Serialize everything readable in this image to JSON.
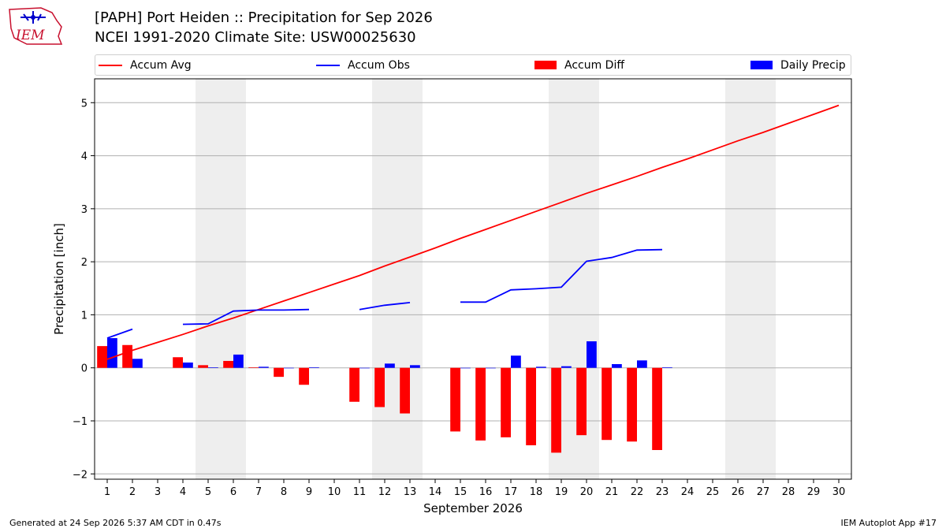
{
  "header": {
    "title_line1": "[PAPH] Port Heiden :: Precipitation for Sep 2026",
    "title_line2": "NCEI 1991-2020 Climate Site: USW00025630",
    "logo_text": "IEM"
  },
  "legend": {
    "accum_avg": "Accum Avg",
    "accum_obs": "Accum Obs",
    "accum_diff": "Accum Diff",
    "daily_precip": "Daily Precip"
  },
  "footer": {
    "left": "Generated at 24 Sep 2026 5:37 AM CDT in 0.47s",
    "right": "IEM Autoplot App #17"
  },
  "colors": {
    "accum_avg": "#ff0000",
    "accum_obs": "#0000ff",
    "accum_diff": "#ff0000",
    "daily_precip": "#0000ff",
    "weekend_shade": "#eeeeee",
    "grid": "#b0b0b0"
  },
  "chart_data": {
    "type": "bar",
    "xlabel": "September 2026",
    "ylabel": "Precipitation [inch]",
    "xlim": [
      0.5,
      30.5
    ],
    "ylim": [
      -2.1,
      5.45
    ],
    "yticks": [
      -2,
      -1,
      0,
      1,
      2,
      3,
      4,
      5
    ],
    "ytick_labels": [
      "−2",
      "−1",
      "0",
      "1",
      "2",
      "3",
      "4",
      "5"
    ],
    "days": [
      1,
      2,
      3,
      4,
      5,
      6,
      7,
      8,
      9,
      10,
      11,
      12,
      13,
      14,
      15,
      16,
      17,
      18,
      19,
      20,
      21,
      22,
      23,
      24,
      25,
      26,
      27,
      28,
      29,
      30
    ],
    "weekend_spans": [
      [
        4.5,
        6.5
      ],
      [
        11.5,
        13.5
      ],
      [
        18.5,
        20.5
      ],
      [
        25.5,
        27.5
      ]
    ],
    "grid": true,
    "legend_position": "top",
    "series": [
      {
        "name": "Accum Avg",
        "kind": "line",
        "values": [
          0.16,
          0.33,
          0.48,
          0.63,
          0.79,
          0.94,
          1.1,
          1.26,
          1.42,
          1.58,
          1.74,
          1.92,
          2.09,
          2.26,
          2.44,
          2.61,
          2.78,
          2.95,
          3.12,
          3.29,
          3.45,
          3.61,
          3.78,
          3.94,
          4.11,
          4.28,
          4.44,
          4.61,
          4.78,
          4.95
        ]
      },
      {
        "name": "Accum Obs",
        "kind": "line",
        "values": [
          0.56,
          0.73,
          null,
          0.82,
          0.83,
          1.07,
          1.09,
          1.09,
          1.1,
          null,
          1.1,
          1.18,
          1.23,
          null,
          1.24,
          1.24,
          1.47,
          1.49,
          1.52,
          2.01,
          2.08,
          2.22,
          2.23,
          null,
          null,
          null,
          null,
          null,
          null,
          null
        ]
      },
      {
        "name": "Accum Diff",
        "kind": "bar",
        "values": [
          0.41,
          0.43,
          null,
          0.2,
          0.05,
          0.13,
          0.01,
          -0.17,
          -0.32,
          null,
          -0.64,
          -0.74,
          -0.86,
          null,
          -1.2,
          -1.37,
          -1.31,
          -1.46,
          -1.6,
          -1.27,
          -1.36,
          -1.39,
          -1.55,
          null,
          null,
          null,
          null,
          null,
          null,
          null
        ]
      },
      {
        "name": "Daily Precip",
        "kind": "bar",
        "values": [
          0.56,
          0.17,
          null,
          0.1,
          0.01,
          0.25,
          0.02,
          0.0,
          0.01,
          null,
          0.0,
          0.08,
          0.05,
          null,
          0.0,
          0.0,
          0.23,
          0.02,
          0.03,
          0.5,
          0.07,
          0.14,
          0.01,
          null,
          null,
          null,
          null,
          null,
          null,
          null
        ]
      }
    ]
  }
}
